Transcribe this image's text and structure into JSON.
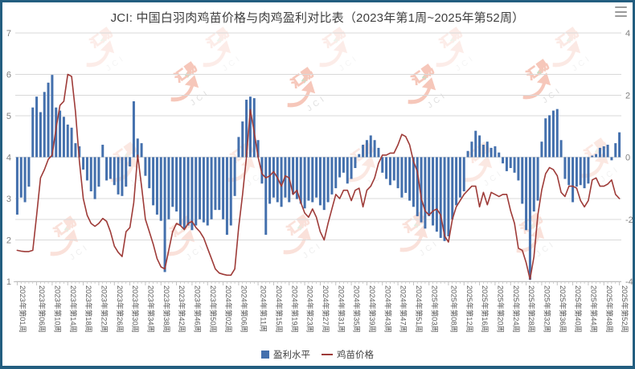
{
  "window": {
    "border_color": "#235e80",
    "background": "#ffffff"
  },
  "header": {
    "title": "JCI: 中国白羽肉鸡苗价格与肉鸡盈利对比表（2023年第1周~2025年第52周）"
  },
  "watermark": {
    "cn": "汇易",
    "en": "JCI",
    "color": "#e4532b",
    "accent_green": "#3fa24b"
  },
  "chart_data": {
    "type": "bar+line",
    "title": "JCI: 中国白羽肉鸡苗价格与肉鸡盈利对比表（2023年第1周~2025年第52周）",
    "weeks_total": 156,
    "grid": "on",
    "legend_position": "bottom-center",
    "left_axis": {
      "min": 1,
      "max": 7,
      "ticks": [
        7,
        6,
        5,
        4,
        3,
        2,
        1
      ],
      "for_series": "鸡苗价格"
    },
    "right_axis": {
      "min": -4,
      "max": 4,
      "ticks": [
        4,
        2,
        0,
        -2,
        -4
      ],
      "for_series": "盈利水平"
    },
    "x_tick_labels": [
      "2023年第01周",
      "2023年第06周",
      "2023年第10周",
      "2023年第14周",
      "2023年第18周",
      "2023年第22周",
      "2023年第26周",
      "2023年第30周",
      "2023年第34周",
      "2023年第38周",
      "2023年第42周",
      "2023年第46周",
      "2023年第50周",
      "2024年第02周",
      "2024年第06周",
      "2024年第11周",
      "2024年第15周",
      "2024年第19周",
      "2024年第23周",
      "2024年第27周",
      "2024年第31周",
      "2024年第35周",
      "2024年第39周",
      "2024年第43周",
      "2024年第47周",
      "2024年第51周",
      "2025年第03周",
      "2025年第08周",
      "2025年第12周",
      "2025年第16周",
      "2025年第20周",
      "2025年第24周",
      "2025年第28周",
      "2025年第32周",
      "2025年第36周",
      "2025年第40周",
      "2025年第44周",
      "2025年第48周",
      "2025年第52周"
    ],
    "x_tick_week_indices": [
      1,
      6,
      10,
      14,
      18,
      22,
      26,
      30,
      34,
      38,
      42,
      46,
      50,
      54,
      58,
      63,
      67,
      71,
      75,
      79,
      83,
      87,
      91,
      95,
      99,
      103,
      107,
      112,
      116,
      120,
      124,
      128,
      132,
      136,
      140,
      144,
      148,
      152,
      156
    ],
    "series": [
      {
        "name": "盈利水平",
        "type": "bar",
        "axis": "right",
        "color": "#4470ad",
        "values": [
          -1.85,
          -1.3,
          -1.45,
          -0.95,
          1.6,
          1.95,
          1.45,
          2.1,
          2.4,
          2.65,
          1.6,
          1.5,
          1.3,
          1.05,
          0.95,
          0.45,
          0.35,
          -0.4,
          -0.75,
          -1.1,
          -1.35,
          -0.95,
          0.4,
          -0.75,
          -0.7,
          -0.9,
          -1.2,
          -1.25,
          -0.95,
          -0.3,
          1.8,
          0.6,
          0.45,
          -0.6,
          -1.0,
          -1.55,
          -1.85,
          -2.05,
          -3.7,
          -2.0,
          -1.6,
          -1.75,
          -2.2,
          -2.3,
          -2.2,
          -2.35,
          -2.2,
          -2.0,
          -2.1,
          -2.2,
          -2.0,
          -1.7,
          -1.7,
          -2.0,
          -2.5,
          -2.2,
          -1.25,
          0.65,
          1.15,
          1.85,
          1.95,
          1.9,
          0.55,
          -0.85,
          -2.5,
          -1.5,
          -1.3,
          -1.45,
          -1.6,
          -1.3,
          -1.45,
          -1.2,
          -1.35,
          -1.5,
          -1.65,
          -1.4,
          -1.45,
          -1.3,
          -1.55,
          -1.7,
          -1.45,
          -1.2,
          -1.0,
          -0.65,
          -0.5,
          -0.85,
          -0.7,
          -0.35,
          0.1,
          0.4,
          0.55,
          0.7,
          0.55,
          0.3,
          -0.5,
          -0.7,
          -0.9,
          -0.75,
          -1.0,
          -1.3,
          -1.15,
          -1.4,
          -1.6,
          -1.9,
          -2.1,
          -2.3,
          -1.9,
          -2.2,
          -2.4,
          -2.6,
          -2.7,
          -2.55,
          -2.0,
          -1.55,
          -1.3,
          -1.1,
          0.2,
          0.5,
          0.85,
          0.7,
          0.4,
          0.5,
          0.3,
          0.35,
          0.15,
          -0.2,
          -0.45,
          -0.35,
          -0.5,
          -0.75,
          -1.5,
          -2.35,
          -3.95,
          -1.75,
          -1.4,
          0.5,
          1.25,
          1.35,
          1.5,
          1.55,
          0.55,
          -0.7,
          -0.9,
          -1.45,
          -0.95,
          -0.9,
          -1.0,
          -0.85,
          0.05,
          0.1,
          0.3,
          0.35,
          0.4,
          -0.1,
          0.45,
          0.8
        ]
      },
      {
        "name": "鸡苗价格",
        "type": "line",
        "axis": "left",
        "color": "#9e3b38",
        "values": [
          1.75,
          1.73,
          1.72,
          1.72,
          1.75,
          2.6,
          3.5,
          3.7,
          3.95,
          4.05,
          4.7,
          5.25,
          5.35,
          6.0,
          5.95,
          5.1,
          3.9,
          3.0,
          2.6,
          2.4,
          2.33,
          2.4,
          2.52,
          2.45,
          2.2,
          1.85,
          1.7,
          1.6,
          2.2,
          2.3,
          2.9,
          4.05,
          3.3,
          2.5,
          2.2,
          1.9,
          1.55,
          1.35,
          1.3,
          1.75,
          2.2,
          2.4,
          2.35,
          2.25,
          2.4,
          2.45,
          2.3,
          2.2,
          2.05,
          1.8,
          1.55,
          1.3,
          1.2,
          1.17,
          1.15,
          1.15,
          1.3,
          2.3,
          3.1,
          4.0,
          5.15,
          4.6,
          4.0,
          3.6,
          3.5,
          3.55,
          3.65,
          3.5,
          3.3,
          3.55,
          3.5,
          3.1,
          3.2,
          2.9,
          2.65,
          2.55,
          2.75,
          2.55,
          2.2,
          2.0,
          2.4,
          2.75,
          3.1,
          3.0,
          3.2,
          3.2,
          2.95,
          3.2,
          3.25,
          2.8,
          3.2,
          3.3,
          3.5,
          3.85,
          4.05,
          4.05,
          4.1,
          4.1,
          4.3,
          4.55,
          4.5,
          4.3,
          3.9,
          3.65,
          3.0,
          2.7,
          2.6,
          2.7,
          2.75,
          2.6,
          2.1,
          1.95,
          2.5,
          2.8,
          2.95,
          3.1,
          3.2,
          3.3,
          3.3,
          2.8,
          3.15,
          2.85,
          3.15,
          3.1,
          3.05,
          3.1,
          3.1,
          2.7,
          2.4,
          1.8,
          1.75,
          1.45,
          1.05,
          1.6,
          2.6,
          3.2,
          3.6,
          3.75,
          3.7,
          3.55,
          3.15,
          3.05,
          3.3,
          3.3,
          3.25,
          2.95,
          2.8,
          2.95,
          3.45,
          3.5,
          3.3,
          3.3,
          3.35,
          3.45,
          3.1,
          3.0
        ]
      }
    ]
  }
}
